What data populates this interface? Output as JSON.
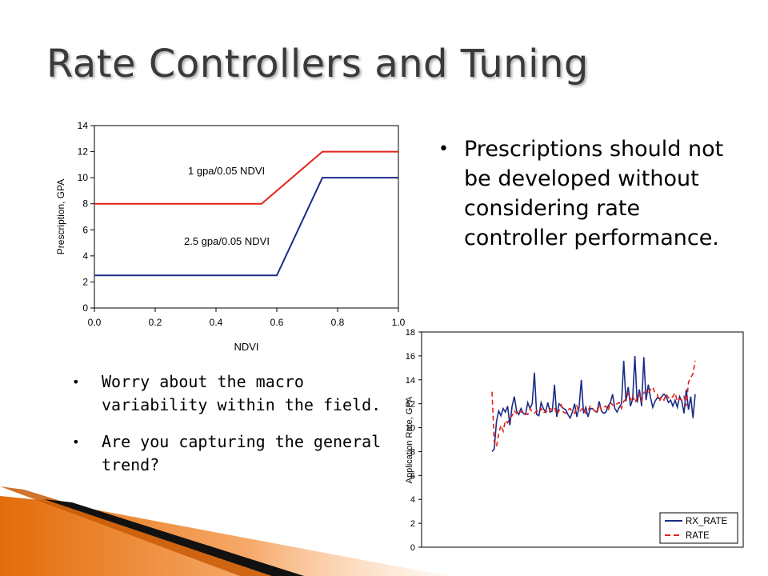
{
  "slide": {
    "title": "Rate Controllers and Tuning",
    "right_bullets": [
      "Prescriptions should not be developed without considering rate controller performance."
    ],
    "left_bullets": [
      "Worry about the macro variability within the field.",
      "Are you capturing the general trend?"
    ]
  },
  "colors": {
    "red": "#e32119",
    "navy": "#1a2c86",
    "accent": "#e36c09"
  },
  "chart_data": [
    {
      "type": "line",
      "xlabel": "NDVI",
      "ylabel": "Prescription, GPA",
      "xlim": [
        0.0,
        1.0
      ],
      "ylim": [
        0,
        14
      ],
      "x_ticks": [
        "0.0",
        "0.2",
        "0.4",
        "0.6",
        "0.8",
        "1.0"
      ],
      "y_ticks": [
        "0",
        "2",
        "4",
        "6",
        "8",
        "10",
        "12",
        "14"
      ],
      "grid": false,
      "annotations": [
        "1 gpa/0.05 NDVI",
        "2.5 gpa/0.05 NDVI"
      ],
      "series": [
        {
          "color": "#e32119",
          "x": [
            0.0,
            0.55,
            0.75,
            1.0
          ],
          "y": [
            8,
            8,
            12,
            12
          ]
        },
        {
          "color": "#1a2c86",
          "x": [
            0.0,
            0.6,
            0.75,
            1.0
          ],
          "y": [
            2.5,
            2.5,
            10,
            10
          ]
        }
      ]
    },
    {
      "type": "line",
      "xlabel": "",
      "ylabel": "Application Rate, GPA",
      "ylim": [
        0,
        18
      ],
      "y_ticks": [
        "0",
        "2",
        "4",
        "6",
        "8",
        "10",
        "12",
        "14",
        "16",
        "18"
      ],
      "grid": false,
      "legend": "bottom-right",
      "series": [
        {
          "name": "RX_RATE",
          "color": "#1a2c86",
          "values": [
            8,
            8.2,
            10.5,
            11.4,
            11,
            11.6,
            11.3,
            11.8,
            10.2,
            11.8,
            12.6,
            11.4,
            11.1,
            11.6,
            11.2,
            11.1,
            12.1,
            11.6,
            12,
            14.6,
            11.1,
            11,
            12.1,
            11.6,
            11.3,
            12.1,
            11.3,
            11.4,
            13.6,
            10.9,
            12,
            11.8,
            11.6,
            11.5,
            11.1,
            10.8,
            11.3,
            12,
            10.9,
            11.7,
            14,
            11.2,
            11.7,
            10.9,
            11.6,
            11.6,
            11.4,
            11.3,
            12.2,
            11.4,
            11.2,
            11.3,
            11.8,
            12.1,
            12.8,
            11.6,
            11.3,
            11.7,
            12,
            15.6,
            12.2,
            13.4,
            11.8,
            12.4,
            16,
            12.1,
            13.2,
            11.8,
            15.9,
            12.3,
            13.6,
            12.5,
            11.7,
            12.2,
            12.5,
            12.4,
            12.6,
            12.8,
            12.6,
            12.1,
            12.3,
            11.8,
            12.3,
            11.7,
            12.6,
            12.2,
            11.2,
            13.2,
            11.5,
            12.6,
            10.8,
            12.8
          ]
        },
        {
          "name": "RATE",
          "color": "#e32119",
          "values": [
            13,
            8.8,
            8.4,
            9.5,
            10.2,
            9.7,
            10.6,
            10.4,
            10.8,
            11,
            11.4,
            11.2,
            11.5,
            11.3,
            11.4,
            11.2,
            11.1,
            11.6,
            11.3,
            11.2,
            11.4,
            11.3,
            11.6,
            11.2,
            11.4,
            11.3,
            11.6,
            11.5,
            11.7,
            11.1,
            11.4,
            11.9,
            11.3,
            11.2,
            11.5,
            11.6,
            11.3,
            11.2,
            11.8,
            11.3,
            11.5,
            11.7,
            11.2,
            11.4,
            11.8,
            11.6,
            11.4,
            11.2,
            11.9,
            11.5,
            11.7,
            11.8,
            11.4,
            12.1,
            11.9,
            11.8,
            12,
            12.1,
            11.6,
            12.2,
            12.4,
            12.9,
            12.3,
            12.7,
            12.1,
            12.5,
            12.8,
            12.2,
            12.9,
            13.1,
            12.9,
            13.2,
            13.4,
            12.9,
            12.8,
            12.2,
            12.6,
            12.3,
            12.8,
            12.5,
            12.4,
            12.6,
            12.9,
            12.2,
            12.4,
            12.3,
            12.6,
            11.8,
            13.8,
            14.2,
            14.5,
            15.6
          ]
        }
      ]
    }
  ]
}
